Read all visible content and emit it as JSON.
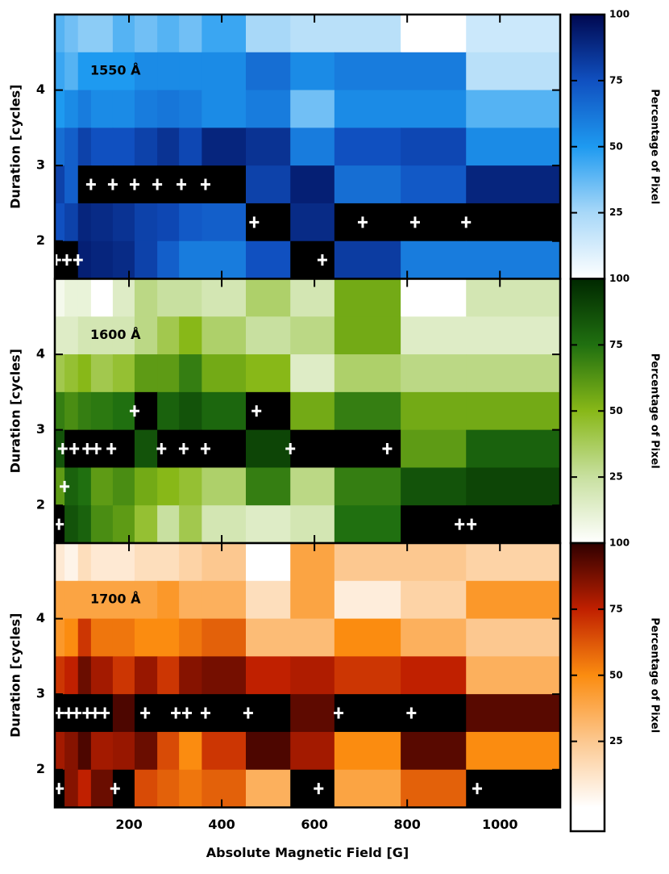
{
  "chart_data": [
    {
      "type": "heatmap",
      "title": "1550 Å",
      "ylabel": "Duration [cycles]",
      "xlim": [
        40,
        1130
      ],
      "ylim": [
        1.5,
        5
      ],
      "yticks": [
        2,
        3,
        4
      ],
      "x_edges": [
        40,
        61,
        90,
        118,
        165,
        212,
        261,
        308,
        357,
        452,
        548,
        643,
        786,
        927,
        1130
      ],
      "y_edges": [
        5,
        4.5,
        4,
        3.5,
        3,
        2.5,
        2,
        1.5
      ],
      "null_color": "#000000",
      "values": [
        [
          40,
          35,
          30,
          30,
          40,
          35,
          40,
          35,
          45,
          25,
          20,
          20,
          0,
          15
        ],
        [
          45,
          40,
          50,
          50,
          50,
          55,
          55,
          55,
          55,
          65,
          55,
          60,
          60,
          20
        ],
        [
          50,
          55,
          60,
          55,
          55,
          60,
          62,
          60,
          55,
          60,
          35,
          55,
          55,
          40
        ],
        [
          65,
          70,
          80,
          75,
          75,
          80,
          85,
          78,
          90,
          85,
          60,
          75,
          78,
          55
        ],
        [
          80,
          70,
          null,
          null,
          null,
          null,
          null,
          null,
          null,
          80,
          92,
          65,
          72,
          90
        ],
        [
          75,
          80,
          90,
          88,
          85,
          80,
          78,
          72,
          70,
          null,
          88,
          null,
          null,
          null
        ],
        [
          null,
          null,
          92,
          90,
          88,
          80,
          70,
          60,
          60,
          75,
          null,
          82,
          60,
          60
        ]
      ],
      "markers": {
        "x": [
          118,
          165,
          212,
          261,
          313,
          365,
          470,
          704,
          817,
          927,
          43,
          66,
          90,
          617
        ],
        "y": [
          2.75,
          2.75,
          2.75,
          2.75,
          2.75,
          2.75,
          2.25,
          2.25,
          2.25,
          2.25,
          1.75,
          1.75,
          1.75,
          1.75
        ]
      },
      "colorbar": {
        "label": "Percentage of Pixel",
        "clim": [
          0,
          100
        ],
        "ticks": [
          25,
          50,
          75,
          100
        ],
        "colors": [
          "#ffffff",
          "#a8d8f8",
          "#1e9af0",
          "#1050c0",
          "#000850"
        ]
      }
    },
    {
      "type": "heatmap",
      "title": "1600 Å",
      "ylabel": "Duration [cycles]",
      "xlim": [
        40,
        1130
      ],
      "ylim": [
        1.5,
        5
      ],
      "yticks": [
        2,
        3,
        4
      ],
      "x_edges": [
        40,
        61,
        90,
        118,
        165,
        212,
        261,
        308,
        357,
        452,
        548,
        643,
        786,
        927,
        1130
      ],
      "y_edges": [
        5,
        4.5,
        4,
        3.5,
        3,
        2.5,
        2,
        1.5
      ],
      "null_color": "#000000",
      "values": [
        [
          5,
          10,
          10,
          0,
          15,
          30,
          25,
          25,
          20,
          35,
          20,
          55,
          0,
          20
        ],
        [
          15,
          15,
          20,
          20,
          20,
          30,
          40,
          50,
          35,
          25,
          30,
          55,
          15,
          15
        ],
        [
          40,
          45,
          50,
          40,
          45,
          60,
          60,
          70,
          55,
          50,
          15,
          35,
          30,
          30
        ],
        [
          70,
          65,
          70,
          72,
          75,
          null,
          80,
          85,
          78,
          null,
          55,
          70,
          55,
          55
        ],
        [
          85,
          null,
          null,
          null,
          null,
          85,
          null,
          null,
          null,
          90,
          null,
          null,
          60,
          80
        ],
        [
          60,
          80,
          75,
          60,
          65,
          55,
          50,
          45,
          35,
          70,
          30,
          70,
          85,
          90
        ],
        [
          null,
          85,
          80,
          65,
          60,
          45,
          25,
          40,
          20,
          15,
          20,
          75,
          null,
          null
        ]
      ],
      "markers": {
        "x": [
          212,
          475,
          57,
          82,
          110,
          130,
          162,
          270,
          318,
          365,
          548,
          757,
          61,
          49,
          913,
          939
        ],
        "y": [
          3.25,
          3.25,
          2.75,
          2.75,
          2.75,
          2.75,
          2.75,
          2.75,
          2.75,
          2.75,
          2.75,
          2.75,
          2.25,
          1.75,
          1.75,
          1.75
        ]
      },
      "colorbar": {
        "label": "Percentage of Pixel",
        "clim": [
          0,
          100
        ],
        "ticks": [
          25,
          50,
          75,
          100
        ],
        "colors": [
          "#ffffff",
          "#c8e0a0",
          "#88b818",
          "#207010",
          "#002800"
        ]
      }
    },
    {
      "type": "heatmap",
      "title": "1700 Å",
      "ylabel": "Duration [cycles]",
      "xlabel": "Absolute Magnetic Field [G]",
      "xlim": [
        40,
        1130
      ],
      "ylim": [
        1.5,
        5
      ],
      "yticks": [
        2,
        3,
        4
      ],
      "xticks": [
        200,
        400,
        600,
        800,
        1000
      ],
      "x_edges": [
        40,
        61,
        90,
        118,
        165,
        212,
        261,
        308,
        357,
        452,
        548,
        643,
        786,
        927,
        1130
      ],
      "y_edges": [
        5,
        4.5,
        4,
        3.5,
        3,
        2.5,
        2,
        1.5
      ],
      "null_color": "#000000",
      "values": [
        [
          10,
          5,
          15,
          10,
          10,
          15,
          15,
          20,
          25,
          0,
          40,
          25,
          25,
          20
        ],
        [
          40,
          40,
          40,
          40,
          40,
          40,
          45,
          35,
          35,
          15,
          40,
          8,
          20,
          45
        ],
        [
          45,
          50,
          70,
          55,
          55,
          50,
          50,
          55,
          60,
          30,
          30,
          50,
          35,
          25
        ],
        [
          70,
          75,
          90,
          80,
          70,
          82,
          70,
          85,
          88,
          75,
          78,
          70,
          75,
          35
        ],
        [
          null,
          null,
          null,
          null,
          95,
          null,
          null,
          null,
          null,
          null,
          92,
          null,
          null,
          93
        ],
        [
          80,
          85,
          95,
          80,
          82,
          90,
          65,
          50,
          70,
          95,
          80,
          50,
          93,
          50
        ],
        [
          null,
          85,
          75,
          90,
          null,
          65,
          60,
          55,
          60,
          35,
          null,
          40,
          60,
          null
        ]
      ],
      "markers": {
        "x": [
          49,
          70,
          87,
          110,
          127,
          148,
          235,
          301,
          325,
          365,
          457,
          652,
          809,
          49,
          170,
          609,
          951
        ],
        "y": [
          2.75,
          2.75,
          2.75,
          2.75,
          2.75,
          2.75,
          2.75,
          2.75,
          2.75,
          2.75,
          2.75,
          2.75,
          2.75,
          1.75,
          1.75,
          1.75,
          1.75
        ]
      },
      "colorbar": {
        "label": "Percentage of Pixel",
        "clim": [
          0,
          100
        ],
        "ticks": [
          25,
          50,
          75,
          100
        ],
        "colors": [
          "#ffffff",
          "#fcc890",
          "#fb8c10",
          "#c02000",
          "#300000"
        ]
      }
    }
  ]
}
